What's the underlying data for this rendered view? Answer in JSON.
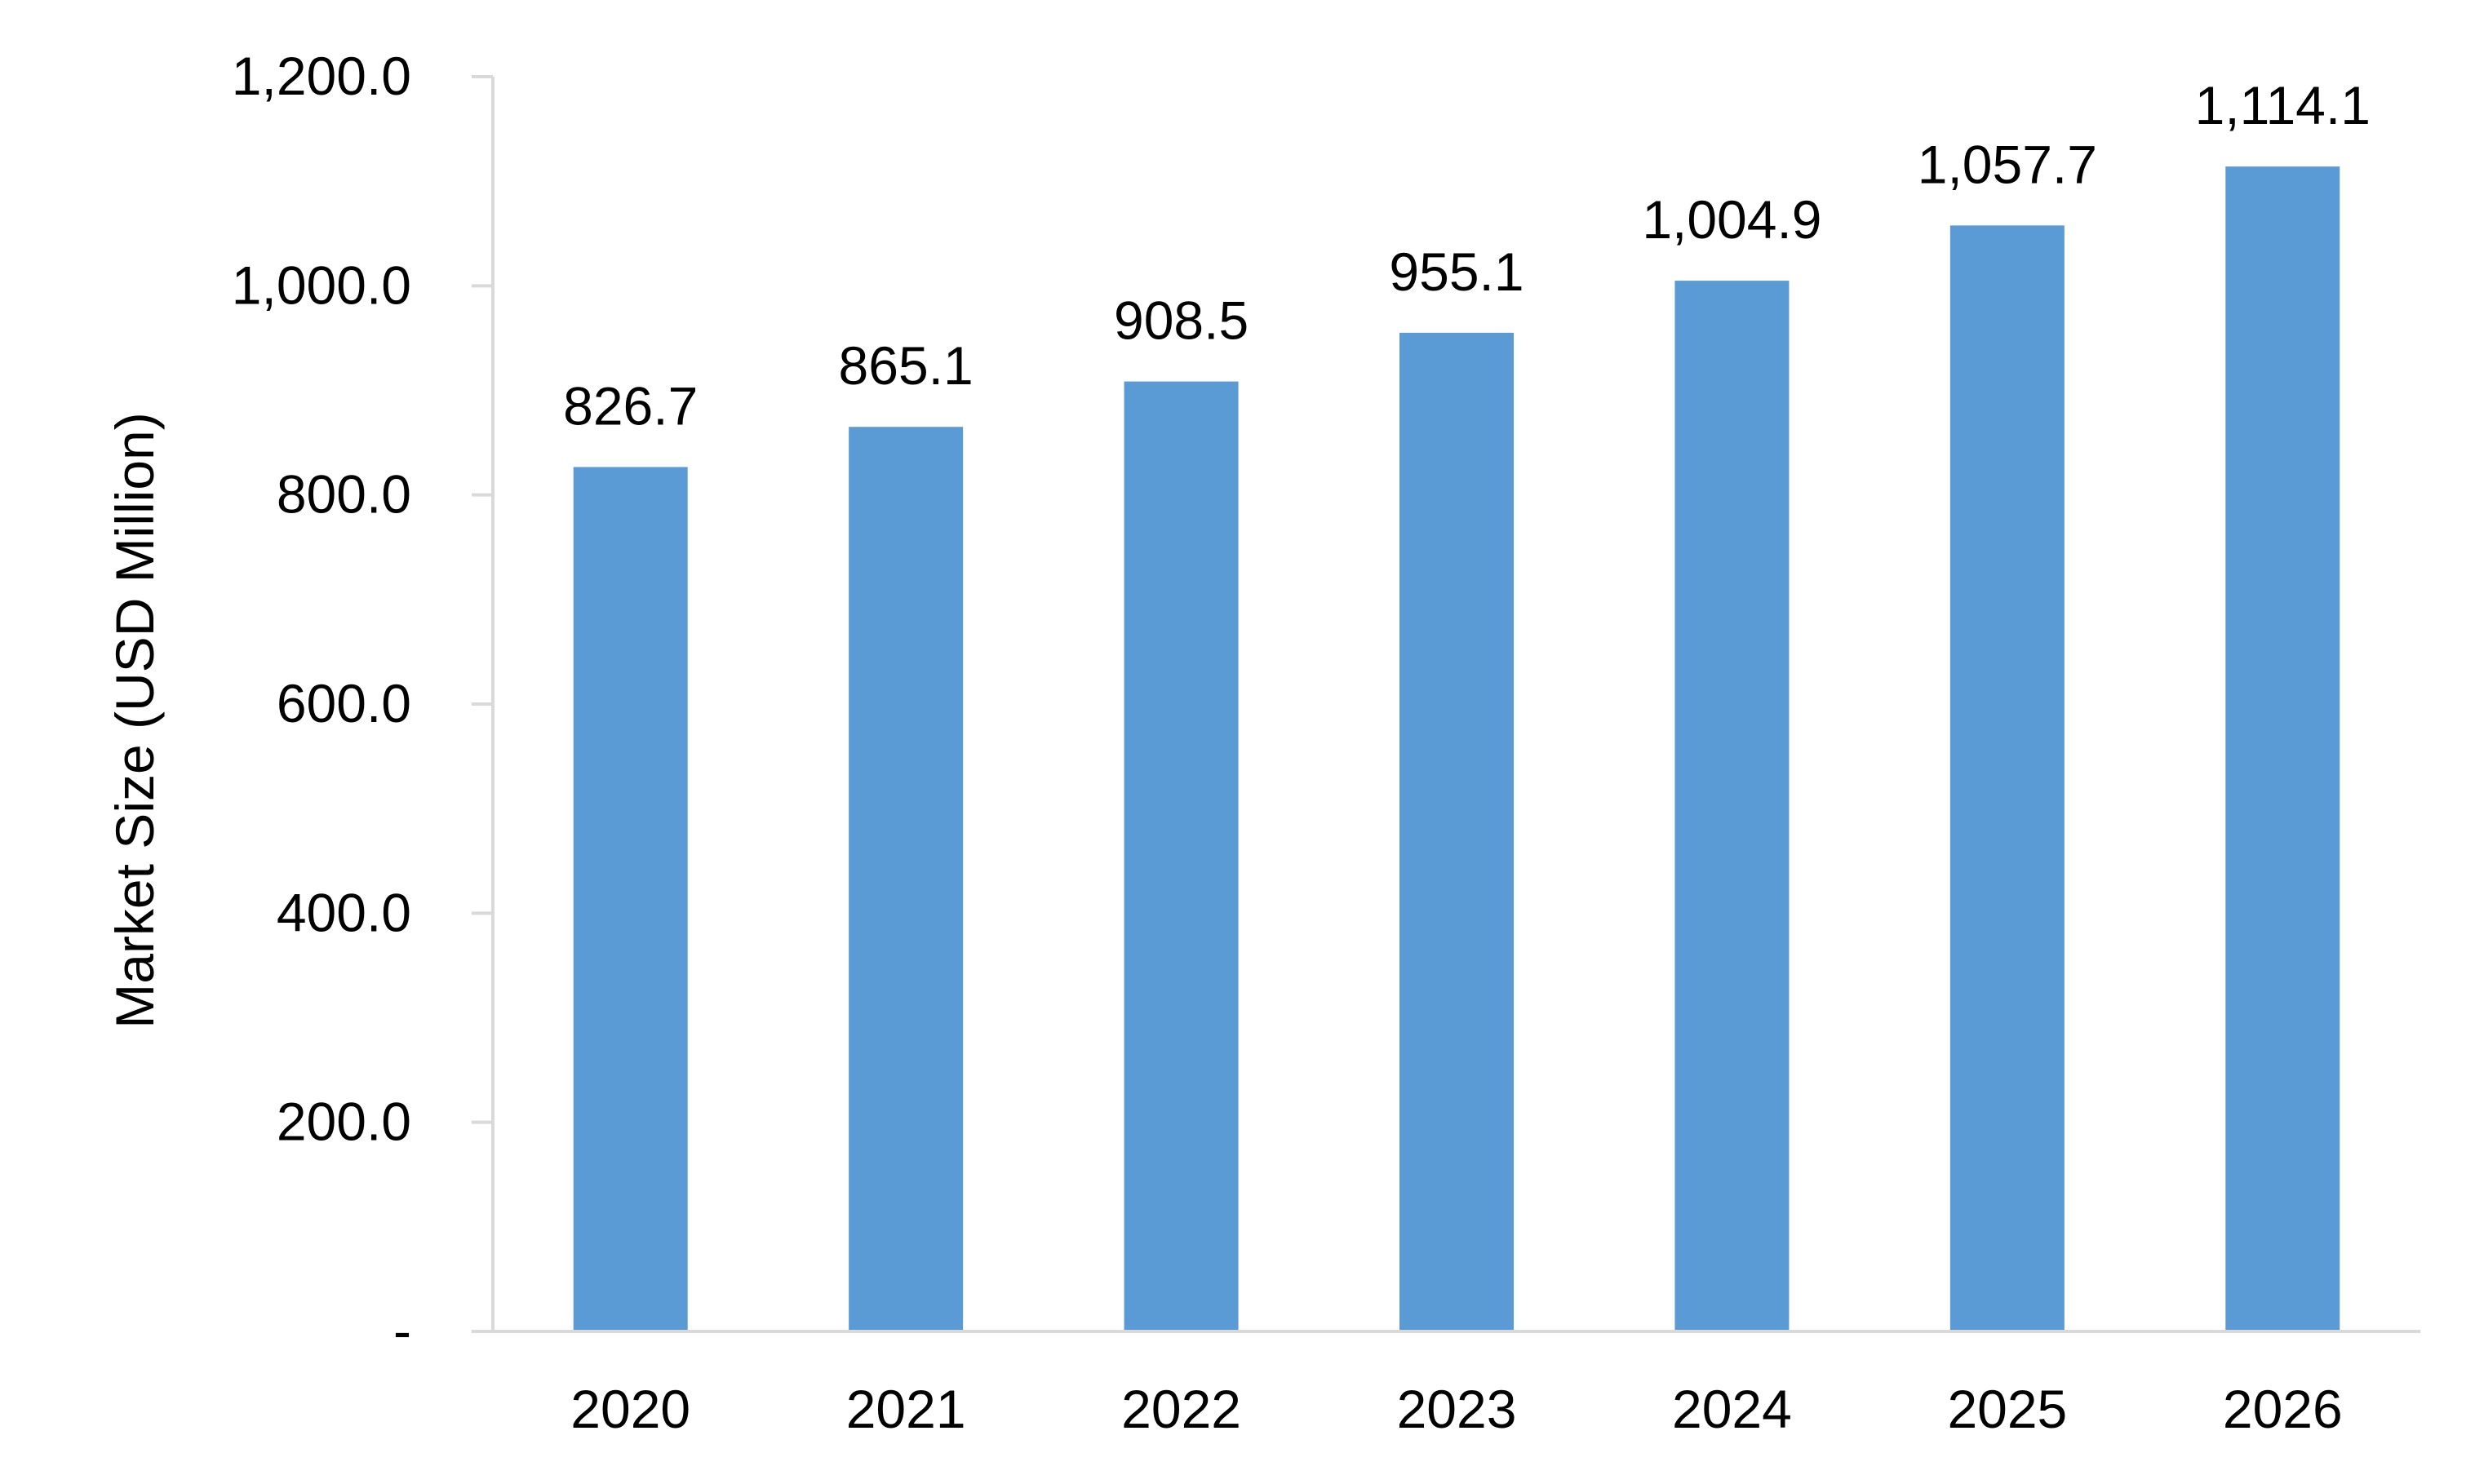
{
  "chart_data": {
    "type": "bar",
    "title": "",
    "xlabel": "",
    "ylabel": "Market Size (USD Million)",
    "categories": [
      "2020",
      "2021",
      "2022",
      "2023",
      "2024",
      "2025",
      "2026"
    ],
    "values": [
      826.7,
      865.1,
      908.5,
      955.1,
      1004.9,
      1057.7,
      1114.1
    ],
    "data_labels": [
      "826.7",
      "865.1",
      "908.5",
      "955.1",
      "1,004.9",
      "1,057.7",
      "1,114.1"
    ],
    "ylim": [
      0,
      1200
    ],
    "yticks": [
      0,
      200,
      400,
      600,
      800,
      1000,
      1200
    ],
    "ytick_labels": [
      "-",
      "200.0",
      "400.0",
      "600.0",
      "800.0",
      "1,000.0",
      "1,200.0"
    ],
    "grid": false,
    "legend": "none",
    "bar_color": "#5B9BD5",
    "axis_color": "#D9D9D9"
  }
}
